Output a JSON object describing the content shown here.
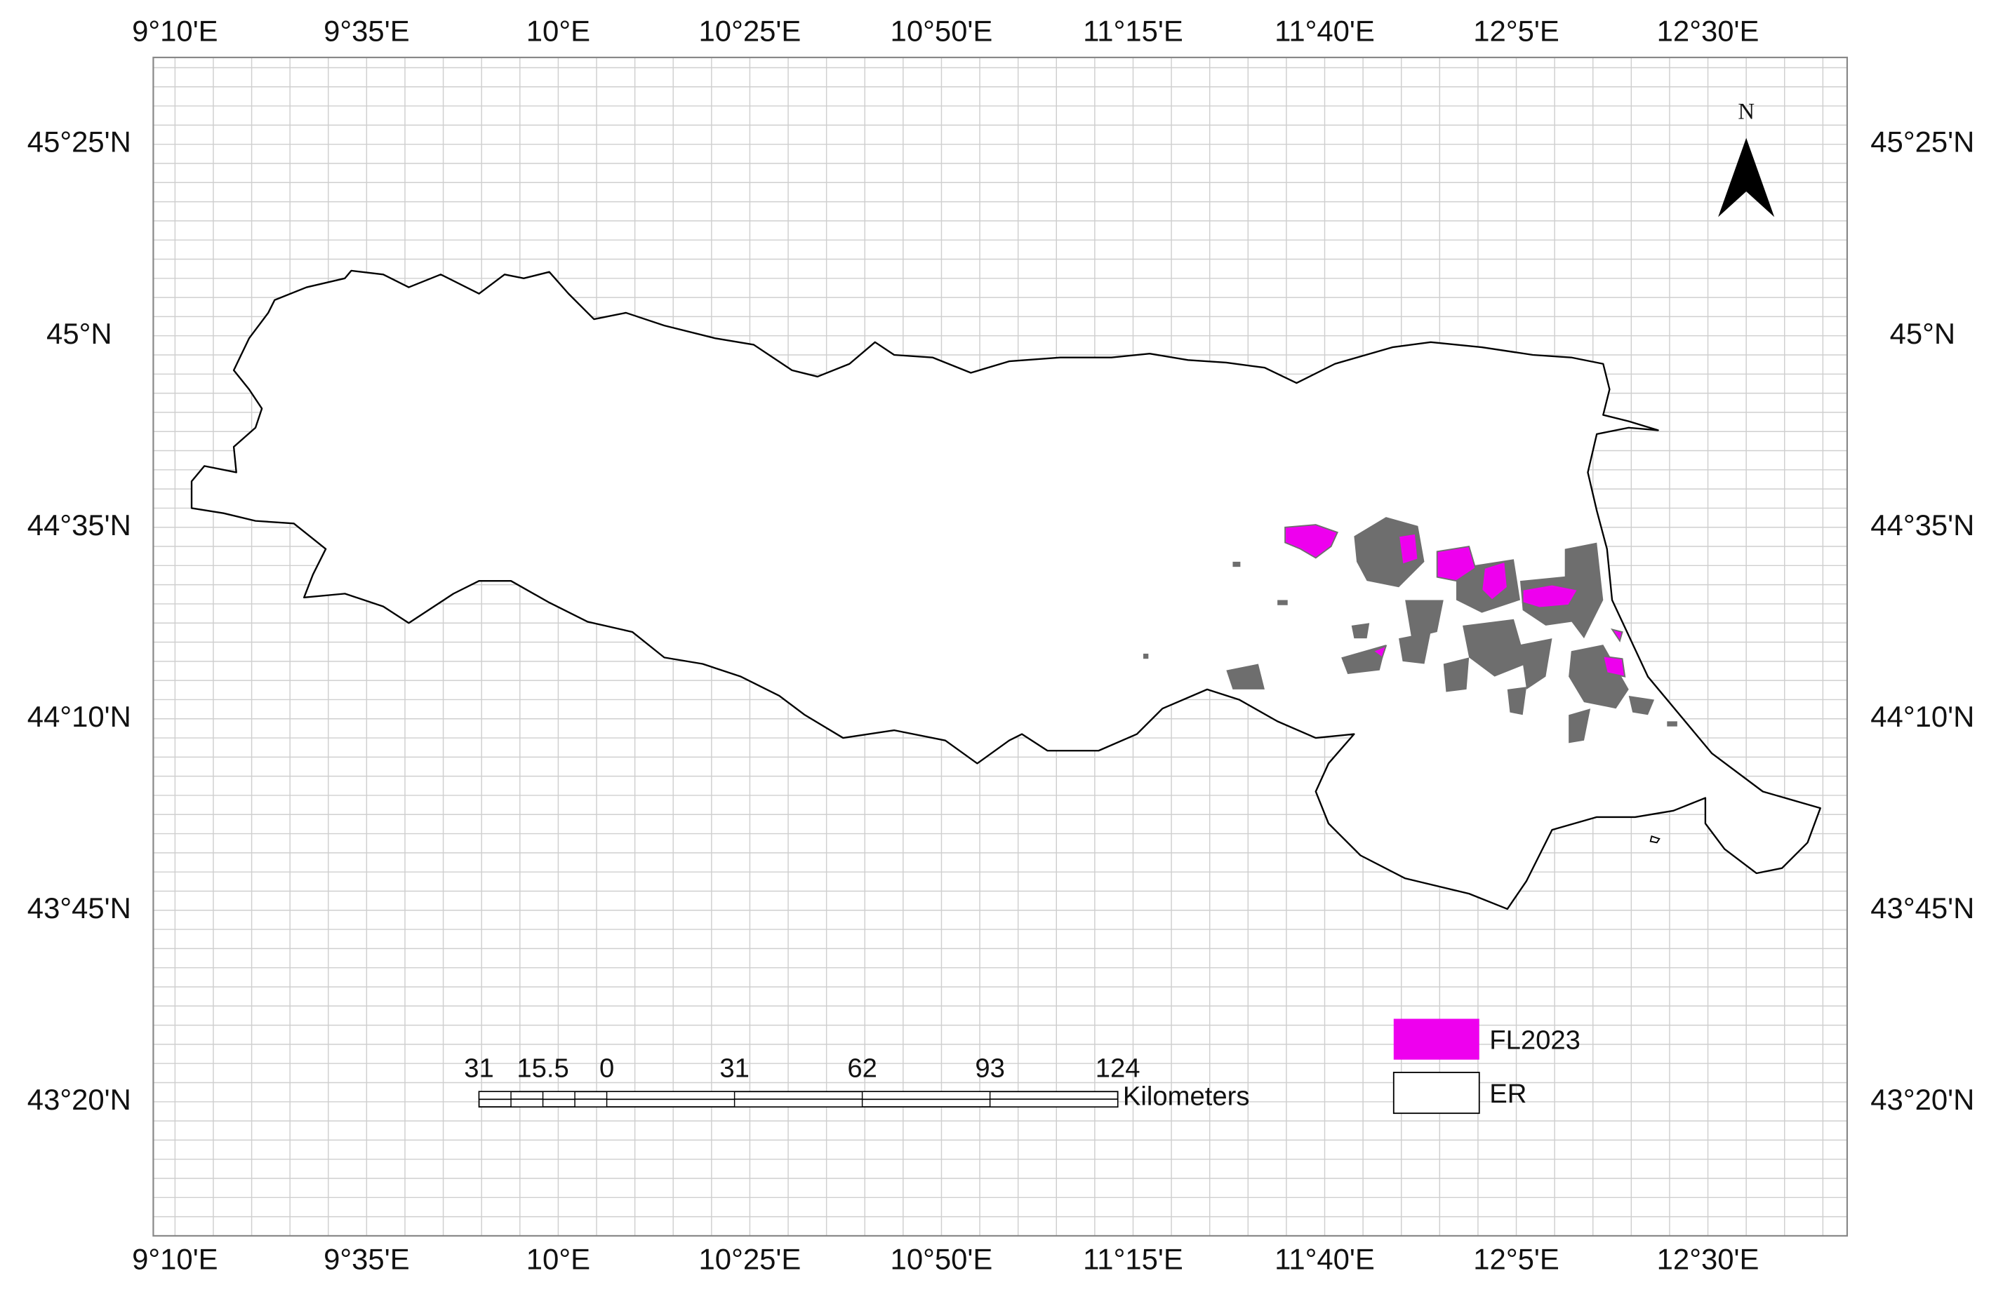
{
  "map": {
    "longitude_labels_top": [
      "9°10'E",
      "9°35'E",
      "10°E",
      "10°25'E",
      "10°50'E",
      "11°15'E",
      "11°40'E",
      "12°5'E",
      "12°30'E"
    ],
    "longitude_labels_bottom": [
      "9°10'E",
      "9°35'E",
      "10°E",
      "10°25'E",
      "10°50'E",
      "11°15'E",
      "11°40'E",
      "12°5'E",
      "12°30'E"
    ],
    "latitude_labels_left": [
      "45°25'N",
      "45°N",
      "44°35'N",
      "44°10'N",
      "43°45'N",
      "43°20'N"
    ],
    "latitude_labels_right": [
      "45°25'N",
      "45°N",
      "44°35'N",
      "44°10'N",
      "43°45'N",
      "43°20'N"
    ],
    "north_arrow": "N",
    "scale_bar": {
      "labels": [
        "31",
        "15.5",
        "0",
        "31",
        "62",
        "93",
        "124"
      ],
      "unit": "Kilometers"
    },
    "legend": [
      {
        "label": "FL2023",
        "color": "#ee00ee"
      },
      {
        "label": "ER",
        "color": "#ffffff"
      }
    ]
  }
}
